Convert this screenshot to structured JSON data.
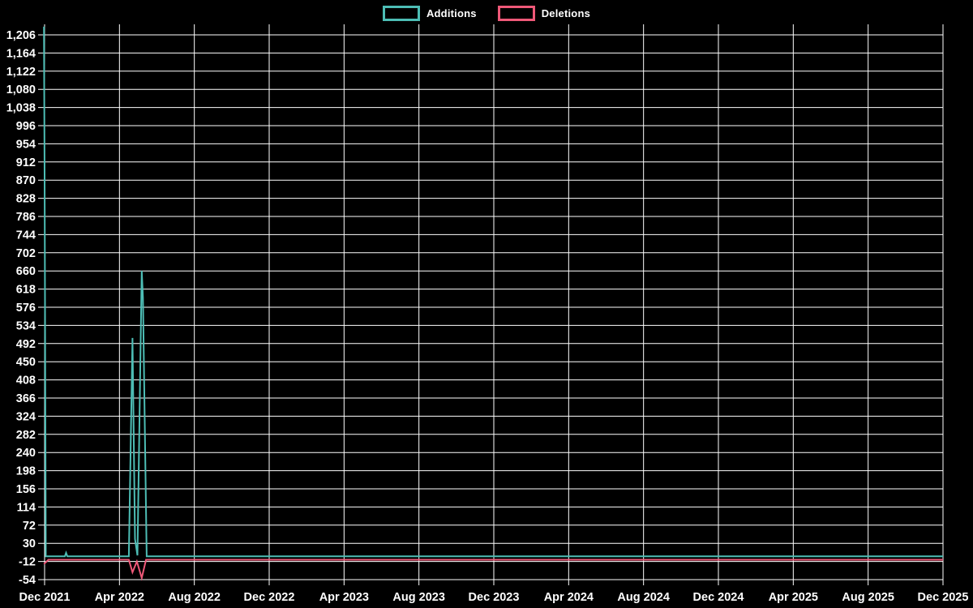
{
  "chart_data": {
    "type": "line",
    "title": "",
    "legend": {
      "position": "top-center",
      "items": [
        {
          "label": "Additions",
          "color": "#4dbdb5"
        },
        {
          "label": "Deletions",
          "color": "#ee5878"
        }
      ]
    },
    "background_color": "#000000",
    "gridline_color": "#ffffff",
    "text_color": "#ffffff",
    "grid": "on",
    "x_axis": {
      "start": "2021-12-15",
      "end": "2025-12-15",
      "tick_labels": [
        "Dec 2021",
        "Apr 2022",
        "Aug 2022",
        "Dec 2022",
        "Apr 2023",
        "Aug 2023",
        "Dec 2023",
        "Apr 2024",
        "Aug 2024",
        "Dec 2024",
        "Apr 2025",
        "Aug 2025",
        "Dec 2025"
      ]
    },
    "y_axis": {
      "min": -54,
      "max": 1206,
      "step": 42,
      "tick_labels": [
        "-54",
        "-12",
        "30",
        "72",
        "114",
        "156",
        "198",
        "240",
        "282",
        "324",
        "366",
        "408",
        "450",
        "492",
        "534",
        "576",
        "618",
        "660",
        "702",
        "744",
        "786",
        "828",
        "870",
        "912",
        "954",
        "996",
        "1,038",
        "1,080",
        "1,122",
        "1,164",
        "1,206"
      ]
    },
    "series": [
      {
        "name": "Additions",
        "color": "#4dbdb5",
        "points": [
          {
            "date": "2021-12-14",
            "value": 1225
          },
          {
            "date": "2021-12-15",
            "value": 884
          },
          {
            "date": "2021-12-17",
            "value": 0
          },
          {
            "date": "2022-01-17",
            "value": 0
          },
          {
            "date": "2022-01-19",
            "value": 8
          },
          {
            "date": "2022-01-21",
            "value": 0
          },
          {
            "date": "2022-05-01",
            "value": 0
          },
          {
            "date": "2022-05-07",
            "value": 505
          },
          {
            "date": "2022-05-11",
            "value": 40
          },
          {
            "date": "2022-05-15",
            "value": 2
          },
          {
            "date": "2022-05-22",
            "value": 660
          },
          {
            "date": "2022-05-24",
            "value": 598
          },
          {
            "date": "2022-05-30",
            "value": 0
          },
          {
            "date": "2025-12-15",
            "value": 0
          }
        ]
      },
      {
        "name": "Deletions",
        "color": "#ee5878",
        "points": [
          {
            "date": "2021-12-14",
            "value": -18
          },
          {
            "date": "2021-12-21",
            "value": -8
          },
          {
            "date": "2022-05-01",
            "value": -8
          },
          {
            "date": "2022-05-07",
            "value": -37
          },
          {
            "date": "2022-05-14",
            "value": -12
          },
          {
            "date": "2022-05-22",
            "value": -50
          },
          {
            "date": "2022-05-29",
            "value": -8
          },
          {
            "date": "2025-12-15",
            "value": -8
          }
        ]
      }
    ]
  }
}
